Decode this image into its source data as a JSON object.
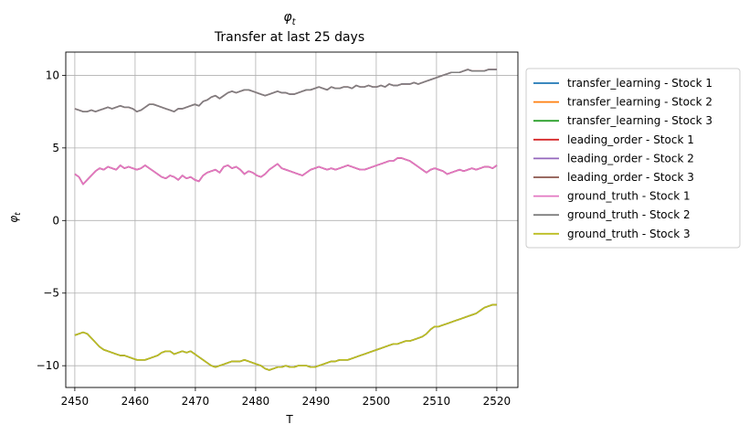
{
  "chart_data": {
    "type": "line",
    "title_main": "φ",
    "title_sub": "t",
    "subtitle": "Transfer at last 25 days",
    "xlabel": "T",
    "ylabel_main": "φ",
    "ylabel_sub": "t",
    "xlim": [
      2448.5,
      2523.5
    ],
    "ylim": [
      -11.5,
      11.6
    ],
    "xticks": [
      2450,
      2460,
      2470,
      2480,
      2490,
      2500,
      2510,
      2520
    ],
    "yticks": [
      -10,
      -5,
      0,
      5,
      10
    ],
    "ytick_labels": [
      "−10",
      "−5",
      "0",
      "5",
      "10"
    ],
    "grid": true,
    "legend_position": "right, outside",
    "x_start": 2450,
    "x_end": 2520,
    "series": [
      {
        "name": "transfer_learning - Stock 1",
        "color": "#1f77b4",
        "ref": 0
      },
      {
        "name": "transfer_learning - Stock 2",
        "color": "#ff7f0e",
        "ref": 1
      },
      {
        "name": "transfer_learning - Stock 3",
        "color": "#2ca02c",
        "ref": 2
      },
      {
        "name": "leading_order - Stock 1",
        "color": "#d62728",
        "ref": 0
      },
      {
        "name": "leading_order - Stock 2",
        "color": "#9467bd",
        "ref": 1
      },
      {
        "name": "leading_order - Stock 3",
        "color": "#8c564b",
        "ref": 2
      },
      {
        "name": "ground_truth - Stock 1",
        "color": "#e377c2",
        "ref": 0
      },
      {
        "name": "ground_truth - Stock 2",
        "color": "#7f7f7f",
        "ref": 1
      },
      {
        "name": "ground_truth - Stock 3",
        "color": "#bcbd22",
        "ref": 2
      }
    ],
    "curves": [
      [
        3.2,
        3.0,
        2.5,
        2.8,
        3.1,
        3.4,
        3.6,
        3.5,
        3.7,
        3.6,
        3.5,
        3.8,
        3.6,
        3.7,
        3.6,
        3.5,
        3.6,
        3.8,
        3.6,
        3.4,
        3.2,
        3.0,
        2.9,
        3.1,
        3.0,
        2.8,
        3.1,
        2.9,
        3.0,
        2.8,
        2.7,
        3.1,
        3.3,
        3.4,
        3.5,
        3.3,
        3.7,
        3.8,
        3.6,
        3.7,
        3.5,
        3.2,
        3.4,
        3.3,
        3.1,
        3.0,
        3.2,
        3.5,
        3.7,
        3.9,
        3.6,
        3.5,
        3.4,
        3.3,
        3.2,
        3.1,
        3.3,
        3.5,
        3.6,
        3.7,
        3.6,
        3.5,
        3.6,
        3.5,
        3.6,
        3.7,
        3.8,
        3.7,
        3.6,
        3.5,
        3.5,
        3.6,
        3.7,
        3.8,
        3.9,
        4.0,
        4.1,
        4.1,
        4.3,
        4.3,
        4.2,
        4.1,
        3.9,
        3.7,
        3.5,
        3.3,
        3.5,
        3.6,
        3.5,
        3.4,
        3.2,
        3.3,
        3.4,
        3.5,
        3.4,
        3.5,
        3.6,
        3.5,
        3.6,
        3.7,
        3.7,
        3.6,
        3.8
      ],
      [
        7.7,
        7.6,
        7.5,
        7.5,
        7.6,
        7.5,
        7.6,
        7.7,
        7.8,
        7.7,
        7.8,
        7.9,
        7.8,
        7.8,
        7.7,
        7.5,
        7.6,
        7.8,
        8.0,
        8.0,
        7.9,
        7.8,
        7.7,
        7.6,
        7.5,
        7.7,
        7.7,
        7.8,
        7.9,
        8.0,
        7.9,
        8.2,
        8.3,
        8.5,
        8.6,
        8.4,
        8.6,
        8.8,
        8.9,
        8.8,
        8.9,
        9.0,
        9.0,
        8.9,
        8.8,
        8.7,
        8.6,
        8.7,
        8.8,
        8.9,
        8.8,
        8.8,
        8.7,
        8.7,
        8.8,
        8.9,
        9.0,
        9.0,
        9.1,
        9.2,
        9.1,
        9.0,
        9.2,
        9.1,
        9.1,
        9.2,
        9.2,
        9.1,
        9.3,
        9.2,
        9.2,
        9.3,
        9.2,
        9.2,
        9.3,
        9.2,
        9.4,
        9.3,
        9.3,
        9.4,
        9.4,
        9.4,
        9.5,
        9.4,
        9.5,
        9.6,
        9.7,
        9.8,
        9.9,
        10.0,
        10.1,
        10.2,
        10.2,
        10.2,
        10.3,
        10.4,
        10.3,
        10.3,
        10.3,
        10.3,
        10.4,
        10.4,
        10.4
      ],
      [
        -7.9,
        -7.8,
        -7.7,
        -7.8,
        -8.1,
        -8.4,
        -8.7,
        -8.9,
        -9.0,
        -9.1,
        -9.2,
        -9.3,
        -9.3,
        -9.4,
        -9.5,
        -9.6,
        -9.6,
        -9.6,
        -9.5,
        -9.4,
        -9.3,
        -9.1,
        -9.0,
        -9.0,
        -9.2,
        -9.1,
        -9.0,
        -9.1,
        -9.0,
        -9.2,
        -9.4,
        -9.6,
        -9.8,
        -10.0,
        -10.1,
        -10.0,
        -9.9,
        -9.8,
        -9.7,
        -9.7,
        -9.7,
        -9.6,
        -9.7,
        -9.8,
        -9.9,
        -10.0,
        -10.2,
        -10.3,
        -10.2,
        -10.1,
        -10.1,
        -10.0,
        -10.1,
        -10.1,
        -10.0,
        -10.0,
        -10.0,
        -10.1,
        -10.1,
        -10.0,
        -9.9,
        -9.8,
        -9.7,
        -9.7,
        -9.6,
        -9.6,
        -9.6,
        -9.5,
        -9.4,
        -9.3,
        -9.2,
        -9.1,
        -9.0,
        -8.9,
        -8.8,
        -8.7,
        -8.6,
        -8.5,
        -8.5,
        -8.4,
        -8.3,
        -8.3,
        -8.2,
        -8.1,
        -8.0,
        -7.8,
        -7.5,
        -7.3,
        -7.3,
        -7.2,
        -7.1,
        -7.0,
        -6.9,
        -6.8,
        -6.7,
        -6.6,
        -6.5,
        -6.4,
        -6.2,
        -6.0,
        -5.9,
        -5.8,
        -5.8
      ]
    ]
  }
}
